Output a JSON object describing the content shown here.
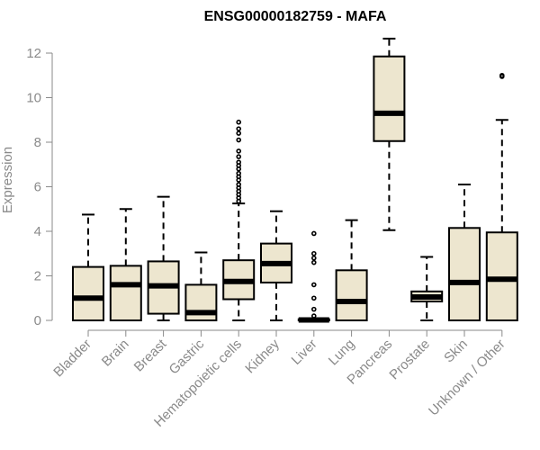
{
  "chart_data": {
    "type": "boxplot",
    "title": "ENSG00000182759 - MAFA",
    "ylabel": "Expression",
    "xlabel": "",
    "ylim": [
      0,
      12.6
    ],
    "yticks": [
      0,
      2,
      4,
      6,
      8,
      10,
      12
    ],
    "grid": false,
    "categories": [
      "Bladder",
      "Brain",
      "Breast",
      "Gastric",
      "Hematopoietic cells",
      "Kidney",
      "Liver",
      "Lung",
      "Pancreas",
      "Prostate",
      "Skin",
      "Unknown / Other"
    ],
    "boxes": [
      {
        "name": "Bladder",
        "min": 0,
        "q1": 0,
        "median": 1.0,
        "q3": 2.4,
        "max": 4.75,
        "outliers": []
      },
      {
        "name": "Brain",
        "min": 0,
        "q1": 0,
        "median": 1.6,
        "q3": 2.45,
        "max": 5.0,
        "outliers": []
      },
      {
        "name": "Breast",
        "min": 0,
        "q1": 0.3,
        "median": 1.55,
        "q3": 2.65,
        "max": 5.55,
        "outliers": []
      },
      {
        "name": "Gastric",
        "min": 0,
        "q1": 0,
        "median": 0.35,
        "q3": 1.6,
        "max": 3.05,
        "outliers": []
      },
      {
        "name": "Hematopoietic cells",
        "min": 0,
        "q1": 0.95,
        "median": 1.75,
        "q3": 2.7,
        "max": 5.25,
        "outliers": [
          5.35,
          5.5,
          5.65,
          5.8,
          5.95,
          6.1,
          6.3,
          6.45,
          6.6,
          6.8,
          6.95,
          7.1,
          7.35,
          7.6,
          8.1,
          8.4,
          8.6,
          8.9
        ]
      },
      {
        "name": "Kidney",
        "min": 0,
        "q1": 1.7,
        "median": 2.55,
        "q3": 3.45,
        "max": 4.9,
        "outliers": []
      },
      {
        "name": "Liver",
        "min": 0,
        "q1": 0,
        "median": 0.02,
        "q3": 0.05,
        "max": 0.1,
        "outliers": [
          0.2,
          0.5,
          1.0,
          1.6,
          2.6,
          2.8,
          3.0,
          3.9
        ]
      },
      {
        "name": "Lung",
        "min": 0,
        "q1": 0,
        "median": 0.85,
        "q3": 2.25,
        "max": 4.5,
        "outliers": []
      },
      {
        "name": "Pancreas",
        "min": 4.05,
        "q1": 8.05,
        "median": 9.3,
        "q3": 11.85,
        "max": 12.65,
        "outliers": []
      },
      {
        "name": "Prostate",
        "min": 0,
        "q1": 0.85,
        "median": 1.05,
        "q3": 1.3,
        "max": 2.85,
        "outliers": []
      },
      {
        "name": "Skin",
        "min": 0,
        "q1": 0,
        "median": 1.7,
        "q3": 4.15,
        "max": 6.1,
        "outliers": []
      },
      {
        "name": "Unknown / Other",
        "min": 0,
        "q1": 0,
        "median": 1.85,
        "q3": 3.95,
        "max": 9.0,
        "outliers": [
          10.95,
          11.0
        ]
      }
    ]
  }
}
